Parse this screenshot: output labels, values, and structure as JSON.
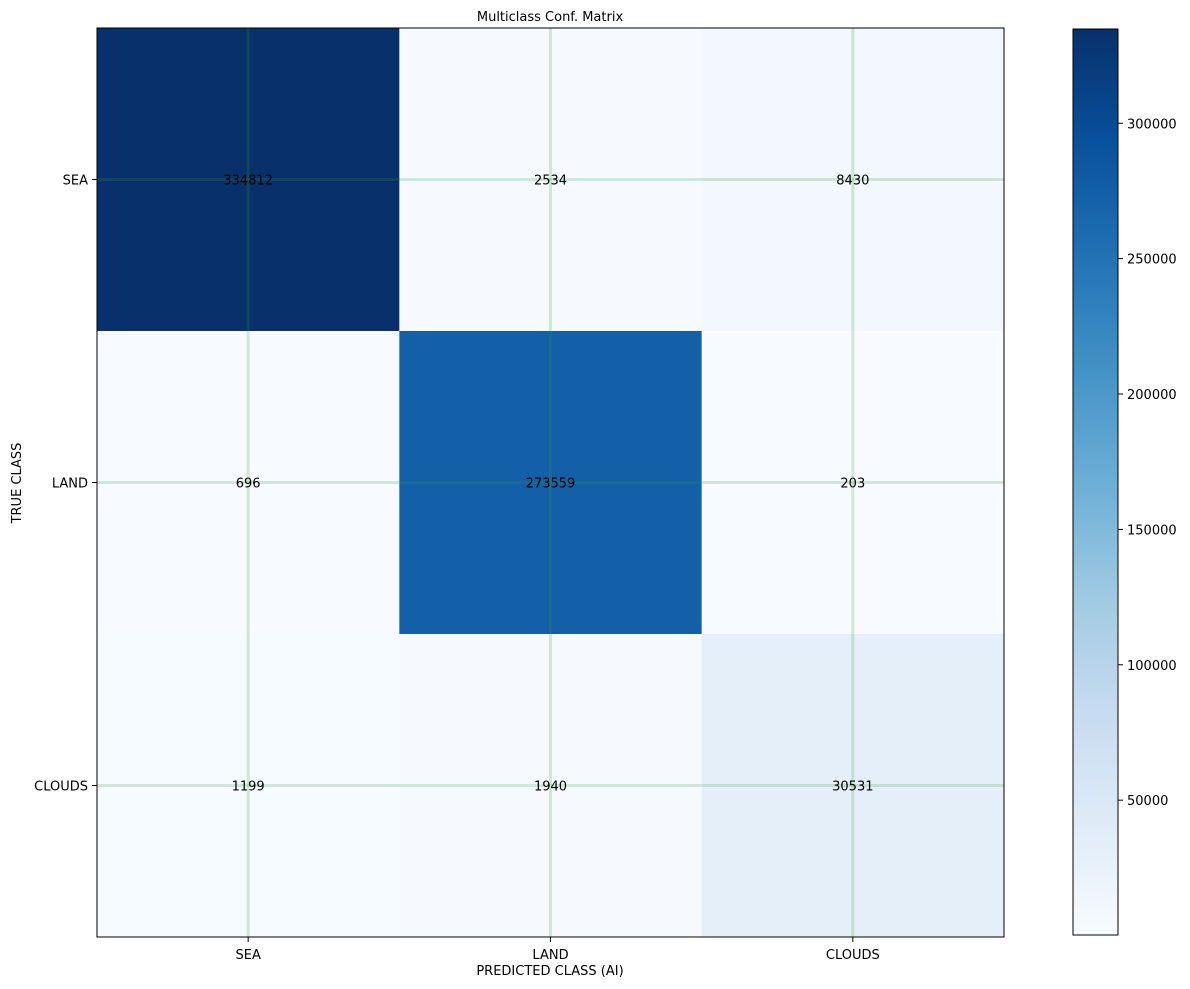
{
  "chart_data": {
    "type": "heatmap",
    "title": "Multiclass Conf. Matrix",
    "xlabel": "PREDICTED CLASS (AI)",
    "ylabel": "TRUE CLASS",
    "x_categories": [
      "SEA",
      "LAND",
      "CLOUDS"
    ],
    "y_categories": [
      "SEA",
      "LAND",
      "CLOUDS"
    ],
    "values": [
      [
        334812,
        2534,
        8430
      ],
      [
        696,
        273559,
        203
      ],
      [
        1199,
        1940,
        30531
      ]
    ],
    "cell_labels": [
      [
        "334812",
        "2534",
        "8430"
      ],
      [
        "696",
        "273559",
        "203"
      ],
      [
        "1199",
        "1940",
        "30531"
      ]
    ],
    "colormap": "Blues",
    "color_range": [
      203,
      334812
    ],
    "colorbar_ticks": [
      50000,
      100000,
      150000,
      200000,
      250000,
      300000
    ],
    "colorbar_tick_labels": [
      "50000",
      "100000",
      "150000",
      "200000",
      "250000",
      "300000"
    ],
    "grid": true,
    "grid_color": "#2ca02c"
  }
}
